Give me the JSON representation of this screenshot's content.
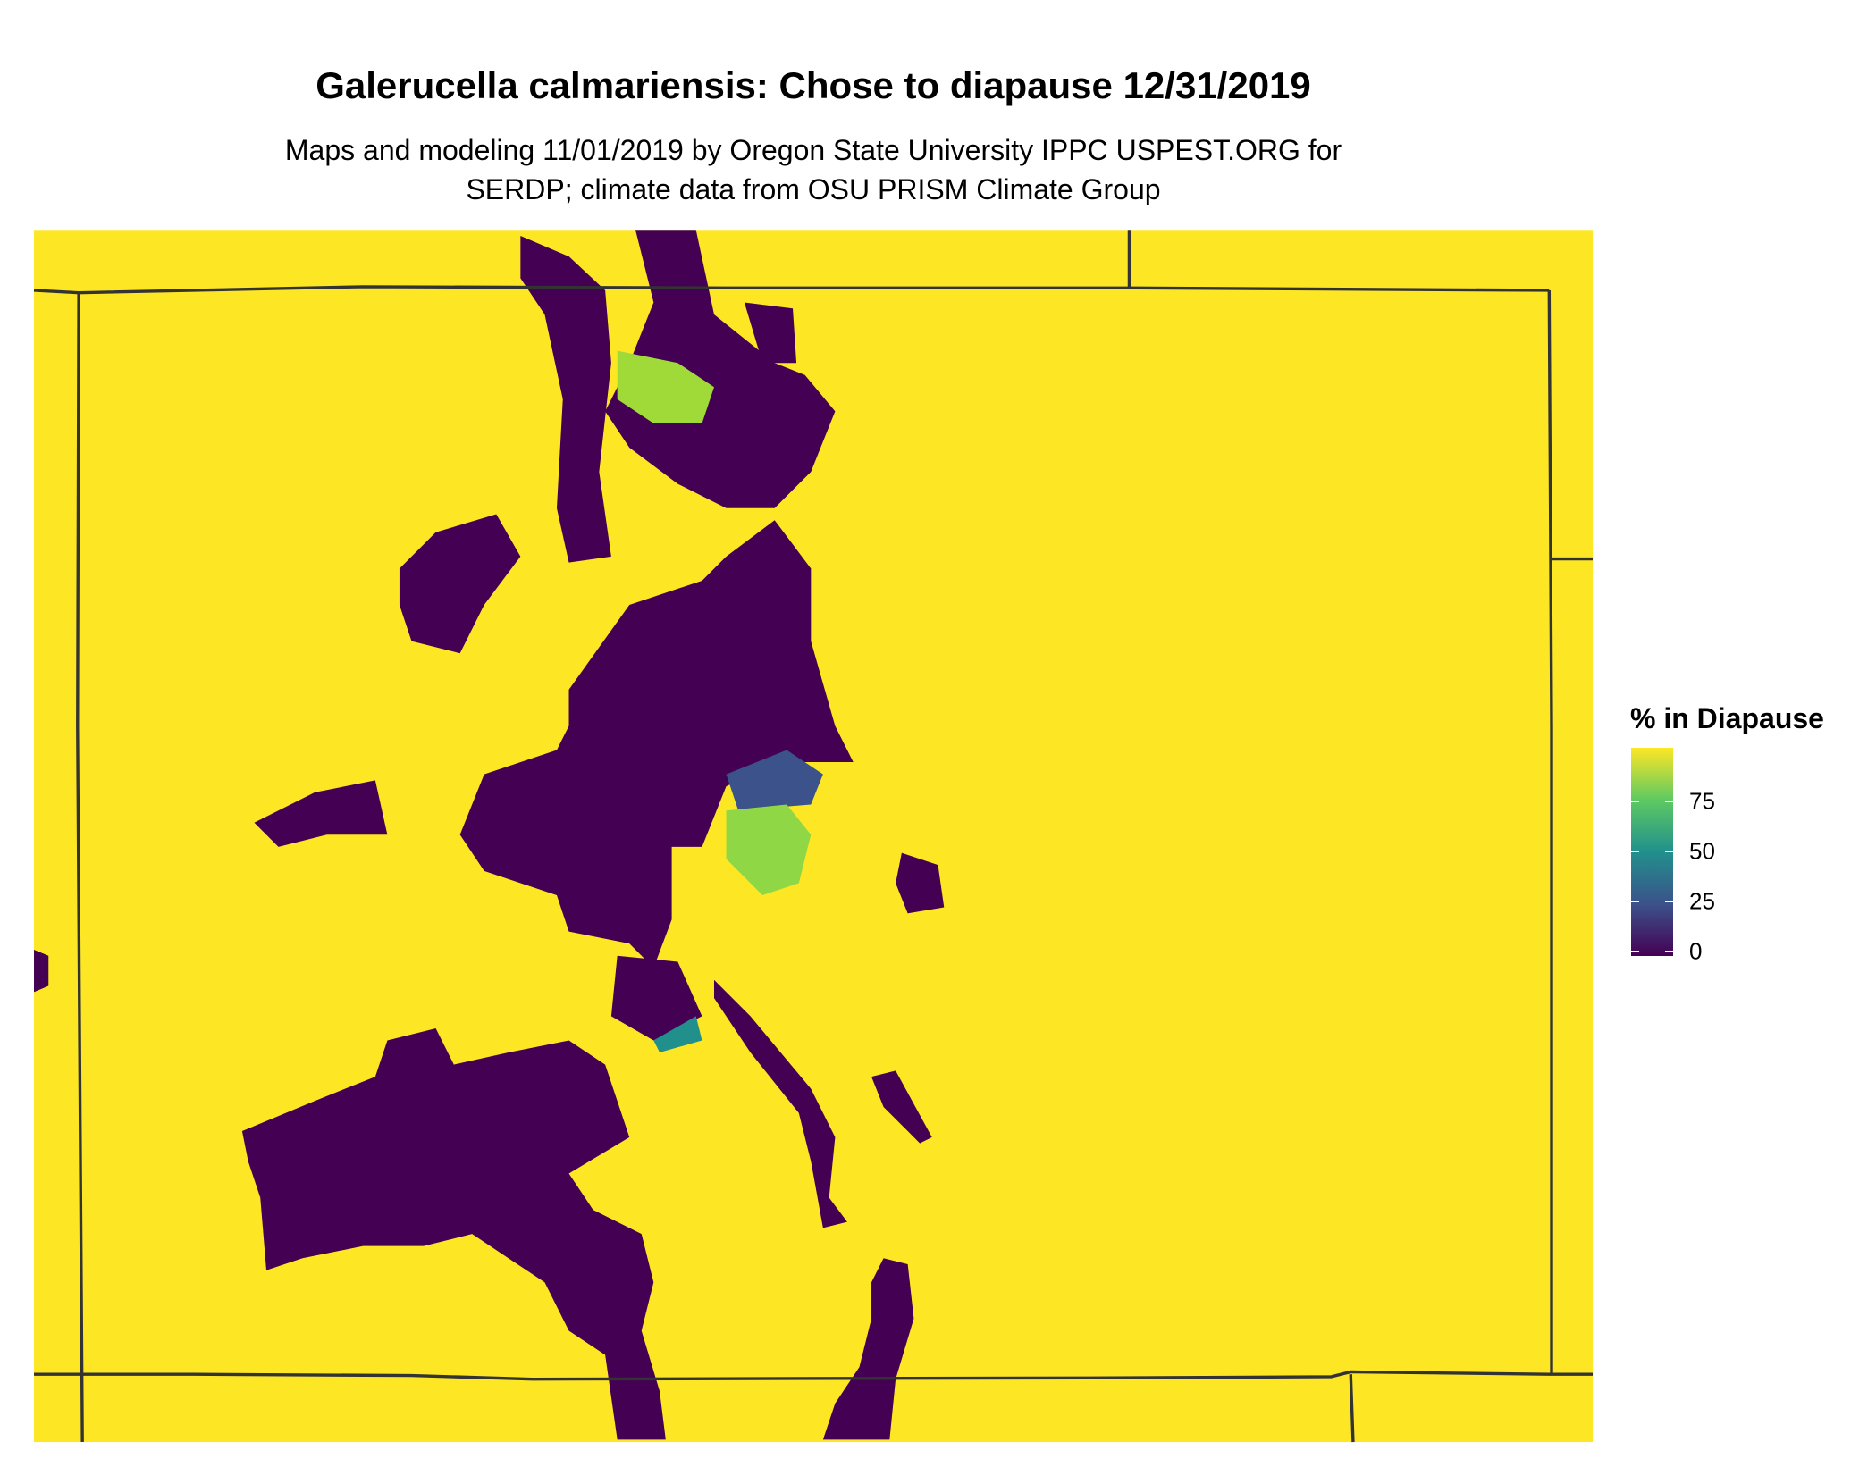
{
  "title": "Galerucella calmariensis: Chose to diapause 12/31/2019",
  "subtitle_lines": [
    "Maps and modeling 11/01/2019 by Oregon State University IPPC USPEST.ORG for",
    "SERDP; climate data from OSU PRISM Climate Group"
  ],
  "legend": {
    "title": "% in Diapause",
    "ticks": [
      "0",
      "25",
      "50",
      "75"
    ],
    "tick_values": [
      0,
      25,
      50,
      75
    ],
    "range": [
      0,
      100
    ],
    "colormap": "viridis",
    "colors": {
      "low": "#440154",
      "q25": "#3b528b",
      "mid": "#21908c",
      "q75": "#5ec962",
      "high": "#fde725"
    }
  },
  "map": {
    "background_value_color": "#fde725",
    "low_value_color": "#440154",
    "boundary_color": "#333333"
  }
}
